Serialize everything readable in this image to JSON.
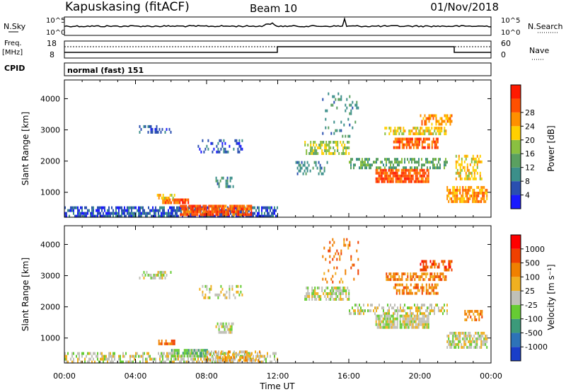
{
  "header": {
    "station": "Kapuskasing (fitACF)",
    "beam": "Beam 10",
    "date": "01/Nov/2018"
  },
  "top_panels": {
    "nsky_label": "N.Sky",
    "nsearch_label": "N.Search",
    "scale_hi": "10^5",
    "scale_lo": "10^0",
    "freq_label_1": "Freq.",
    "freq_label_2": "[MHz]",
    "freq_ticks": [
      "18",
      "8"
    ],
    "nave_label": "Nave",
    "nave_ticks": [
      "60",
      "0"
    ],
    "cpid_label": "CPID",
    "cpid_value": "normal (fast) 151"
  },
  "colors": {
    "power_scale": [
      "#1a1aff",
      "#2a4fb0",
      "#3c8f8a",
      "#5aa060",
      "#8ac040",
      "#ffd000",
      "#ff9000",
      "#ff5000",
      "#ff1a00"
    ],
    "velocity_scale": [
      "#1a3ec8",
      "#2d73b8",
      "#3c9a7a",
      "#66cc33",
      "#c0c0b8",
      "#f0b020",
      "#f08000",
      "#f04000",
      "#ff0000"
    ]
  },
  "chart_data": [
    {
      "type": "heatmap",
      "name": "power-panel",
      "ylabel": "Slant Range [km]",
      "yticks": [
        "1000",
        "2000",
        "3000",
        "4000"
      ],
      "ylim": [
        200,
        4600
      ],
      "xlim": [
        0,
        24
      ],
      "colorbar_label": "Power [dB]",
      "colorbar_ticks": [
        "4",
        "8",
        "12",
        "16",
        "20",
        "24",
        "28"
      ],
      "regions": [
        {
          "t0": 0.0,
          "t1": 12.0,
          "r0": 250,
          "r1": 550,
          "level": 1,
          "density": 0.7
        },
        {
          "t0": 5.5,
          "t1": 7.0,
          "r0": 650,
          "r1": 800,
          "level": 7,
          "density": 0.9
        },
        {
          "t0": 6.5,
          "t1": 10.5,
          "r0": 300,
          "r1": 600,
          "level": 7,
          "density": 0.85
        },
        {
          "t0": 5.2,
          "t1": 6.2,
          "r0": 850,
          "r1": 950,
          "level": 5,
          "density": 0.6
        },
        {
          "t0": 4.2,
          "t1": 6.0,
          "r0": 2950,
          "r1": 3150,
          "level": 1,
          "density": 0.35
        },
        {
          "t0": 7.5,
          "t1": 10.0,
          "r0": 2300,
          "r1": 2700,
          "level": 1,
          "density": 0.3
        },
        {
          "t0": 8.5,
          "t1": 9.5,
          "r0": 1200,
          "r1": 1500,
          "level": 2,
          "density": 0.4
        },
        {
          "t0": 13.5,
          "t1": 16.0,
          "r0": 2200,
          "r1": 2650,
          "level": 4,
          "density": 0.6
        },
        {
          "t0": 14.5,
          "t1": 16.5,
          "r0": 2800,
          "r1": 4200,
          "level": 2,
          "density": 0.15
        },
        {
          "t0": 13.0,
          "t1": 15.0,
          "r0": 1600,
          "r1": 2000,
          "level": 2,
          "density": 0.3
        },
        {
          "t0": 16.0,
          "t1": 21.5,
          "r0": 1800,
          "r1": 2100,
          "level": 3,
          "density": 0.5
        },
        {
          "t0": 17.5,
          "t1": 20.5,
          "r0": 1350,
          "r1": 1750,
          "level": 7,
          "density": 0.85
        },
        {
          "t0": 18.5,
          "t1": 21.0,
          "r0": 2400,
          "r1": 2750,
          "level": 7,
          "density": 0.7
        },
        {
          "t0": 18.0,
          "t1": 21.5,
          "r0": 2850,
          "r1": 3100,
          "level": 5,
          "density": 0.6
        },
        {
          "t0": 20.0,
          "t1": 21.8,
          "r0": 3200,
          "r1": 3500,
          "level": 6,
          "density": 0.5
        },
        {
          "t0": 21.5,
          "t1": 23.8,
          "r0": 700,
          "r1": 1200,
          "level": 6,
          "density": 0.7
        },
        {
          "t0": 22.0,
          "t1": 23.5,
          "r0": 1400,
          "r1": 2200,
          "level": 5,
          "density": 0.5
        }
      ]
    },
    {
      "type": "heatmap",
      "name": "velocity-panel",
      "ylabel": "Slant Range [km]",
      "yticks": [
        "1000",
        "2000",
        "3000",
        "4000"
      ],
      "ylim": [
        200,
        4600
      ],
      "xlim": [
        0,
        24
      ],
      "xlabel": "Time UT",
      "xticks": [
        "00:00",
        "04:00",
        "08:00",
        "12:00",
        "16:00",
        "20:00",
        "00:00"
      ],
      "colorbar_label": "Velocity [m s⁻¹]",
      "colorbar_ticks": [
        "1000",
        "500",
        "100",
        "25",
        "-25",
        "-100",
        "-500",
        "-1000"
      ],
      "regions": [
        {
          "t0": 0.0,
          "t1": 12.0,
          "r0": 250,
          "r1": 550,
          "level": 4,
          "density": 0.5
        },
        {
          "t0": 6.0,
          "t1": 8.0,
          "r0": 400,
          "r1": 650,
          "level": 3,
          "density": 0.8
        },
        {
          "t0": 8.0,
          "t1": 11.0,
          "r0": 300,
          "r1": 600,
          "level": 5,
          "density": 0.5
        },
        {
          "t0": 5.2,
          "t1": 6.2,
          "r0": 850,
          "r1": 950,
          "level": 6,
          "density": 0.6
        },
        {
          "t0": 4.2,
          "t1": 6.0,
          "r0": 2950,
          "r1": 3150,
          "level": 4,
          "density": 0.35
        },
        {
          "t0": 7.5,
          "t1": 10.0,
          "r0": 2300,
          "r1": 2700,
          "level": 4,
          "density": 0.3
        },
        {
          "t0": 8.5,
          "t1": 9.5,
          "r0": 1200,
          "r1": 1500,
          "level": 4,
          "density": 0.4
        },
        {
          "t0": 13.5,
          "t1": 16.0,
          "r0": 2200,
          "r1": 2650,
          "level": 4,
          "density": 0.6
        },
        {
          "t0": 14.5,
          "t1": 16.5,
          "r0": 2800,
          "r1": 4200,
          "level": 6,
          "density": 0.15
        },
        {
          "t0": 16.0,
          "t1": 21.5,
          "r0": 1800,
          "r1": 2100,
          "level": 4,
          "density": 0.5
        },
        {
          "t0": 17.5,
          "t1": 20.5,
          "r0": 1350,
          "r1": 1750,
          "level": 4,
          "density": 0.85
        },
        {
          "t0": 18.5,
          "t1": 21.0,
          "r0": 2400,
          "r1": 2750,
          "level": 6,
          "density": 0.6
        },
        {
          "t0": 18.0,
          "t1": 21.5,
          "r0": 2850,
          "r1": 3100,
          "level": 6,
          "density": 0.6
        },
        {
          "t0": 20.0,
          "t1": 21.8,
          "r0": 3200,
          "r1": 3500,
          "level": 7,
          "density": 0.5
        },
        {
          "t0": 21.5,
          "t1": 23.8,
          "r0": 700,
          "r1": 1200,
          "level": 4,
          "density": 0.7
        },
        {
          "t0": 22.5,
          "t1": 23.5,
          "r0": 1600,
          "r1": 1900,
          "level": 6,
          "density": 0.6
        }
      ]
    }
  ]
}
